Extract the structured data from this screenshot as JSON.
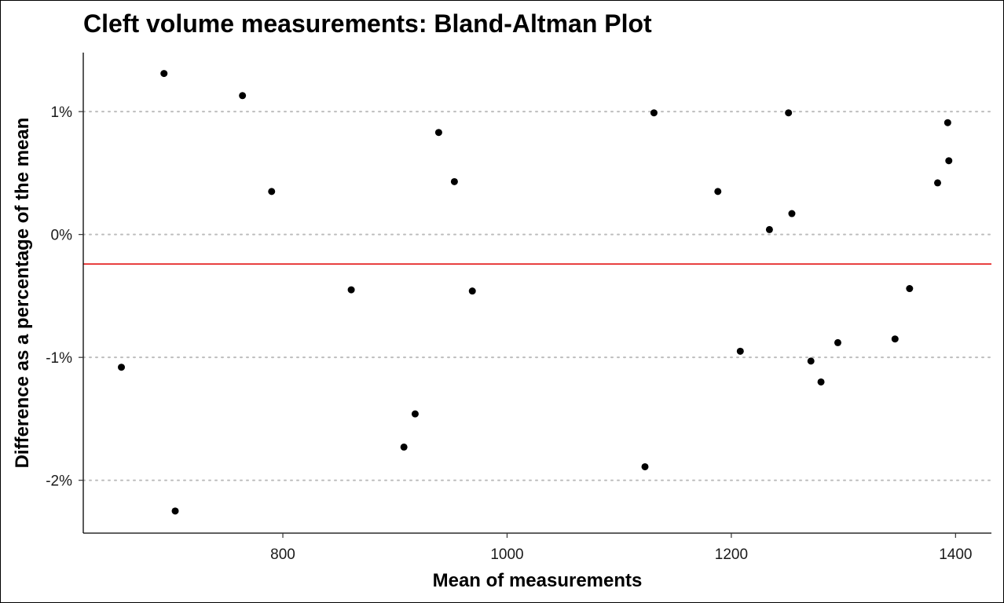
{
  "chart_data": {
    "type": "scatter",
    "title": "Cleft volume measurements: Bland-Altman Plot",
    "xlabel": "Mean of measurements",
    "ylabel": "Difference as a percentage of the mean",
    "xlim": [
      622,
      1432
    ],
    "ylim": [
      -2.43,
      1.48
    ],
    "x_ticks": [
      800,
      1000,
      1200,
      1400
    ],
    "x_tick_labels": [
      "800",
      "1000",
      "1200",
      "1400"
    ],
    "y_ticks": [
      1,
      0,
      -1,
      -2
    ],
    "y_tick_labels": [
      "1%",
      "0%",
      "-1%",
      "-2%"
    ],
    "grid": "horizontal dotted gridlines at major y ticks",
    "legend": "none",
    "mean_line": {
      "value": -0.24,
      "color": "#e00000"
    },
    "point_color": "#000000",
    "points": [
      {
        "x": 656,
        "y": -1.08
      },
      {
        "x": 694,
        "y": 1.31
      },
      {
        "x": 704,
        "y": -2.25
      },
      {
        "x": 764,
        "y": 1.13
      },
      {
        "x": 790,
        "y": 0.35
      },
      {
        "x": 861,
        "y": -0.45
      },
      {
        "x": 908,
        "y": -1.73
      },
      {
        "x": 918,
        "y": -1.46
      },
      {
        "x": 939,
        "y": 0.83
      },
      {
        "x": 953,
        "y": 0.43
      },
      {
        "x": 969,
        "y": -0.46
      },
      {
        "x": 1123,
        "y": -1.89
      },
      {
        "x": 1131,
        "y": 0.99
      },
      {
        "x": 1188,
        "y": 0.35
      },
      {
        "x": 1208,
        "y": -0.95
      },
      {
        "x": 1234,
        "y": 0.04
      },
      {
        "x": 1251,
        "y": 0.99
      },
      {
        "x": 1254,
        "y": 0.17
      },
      {
        "x": 1271,
        "y": -1.03
      },
      {
        "x": 1280,
        "y": -1.2
      },
      {
        "x": 1295,
        "y": -0.88
      },
      {
        "x": 1346,
        "y": -0.85
      },
      {
        "x": 1359,
        "y": -0.44
      },
      {
        "x": 1384,
        "y": 0.42
      },
      {
        "x": 1393,
        "y": 0.91
      },
      {
        "x": 1394,
        "y": 0.6
      }
    ]
  }
}
